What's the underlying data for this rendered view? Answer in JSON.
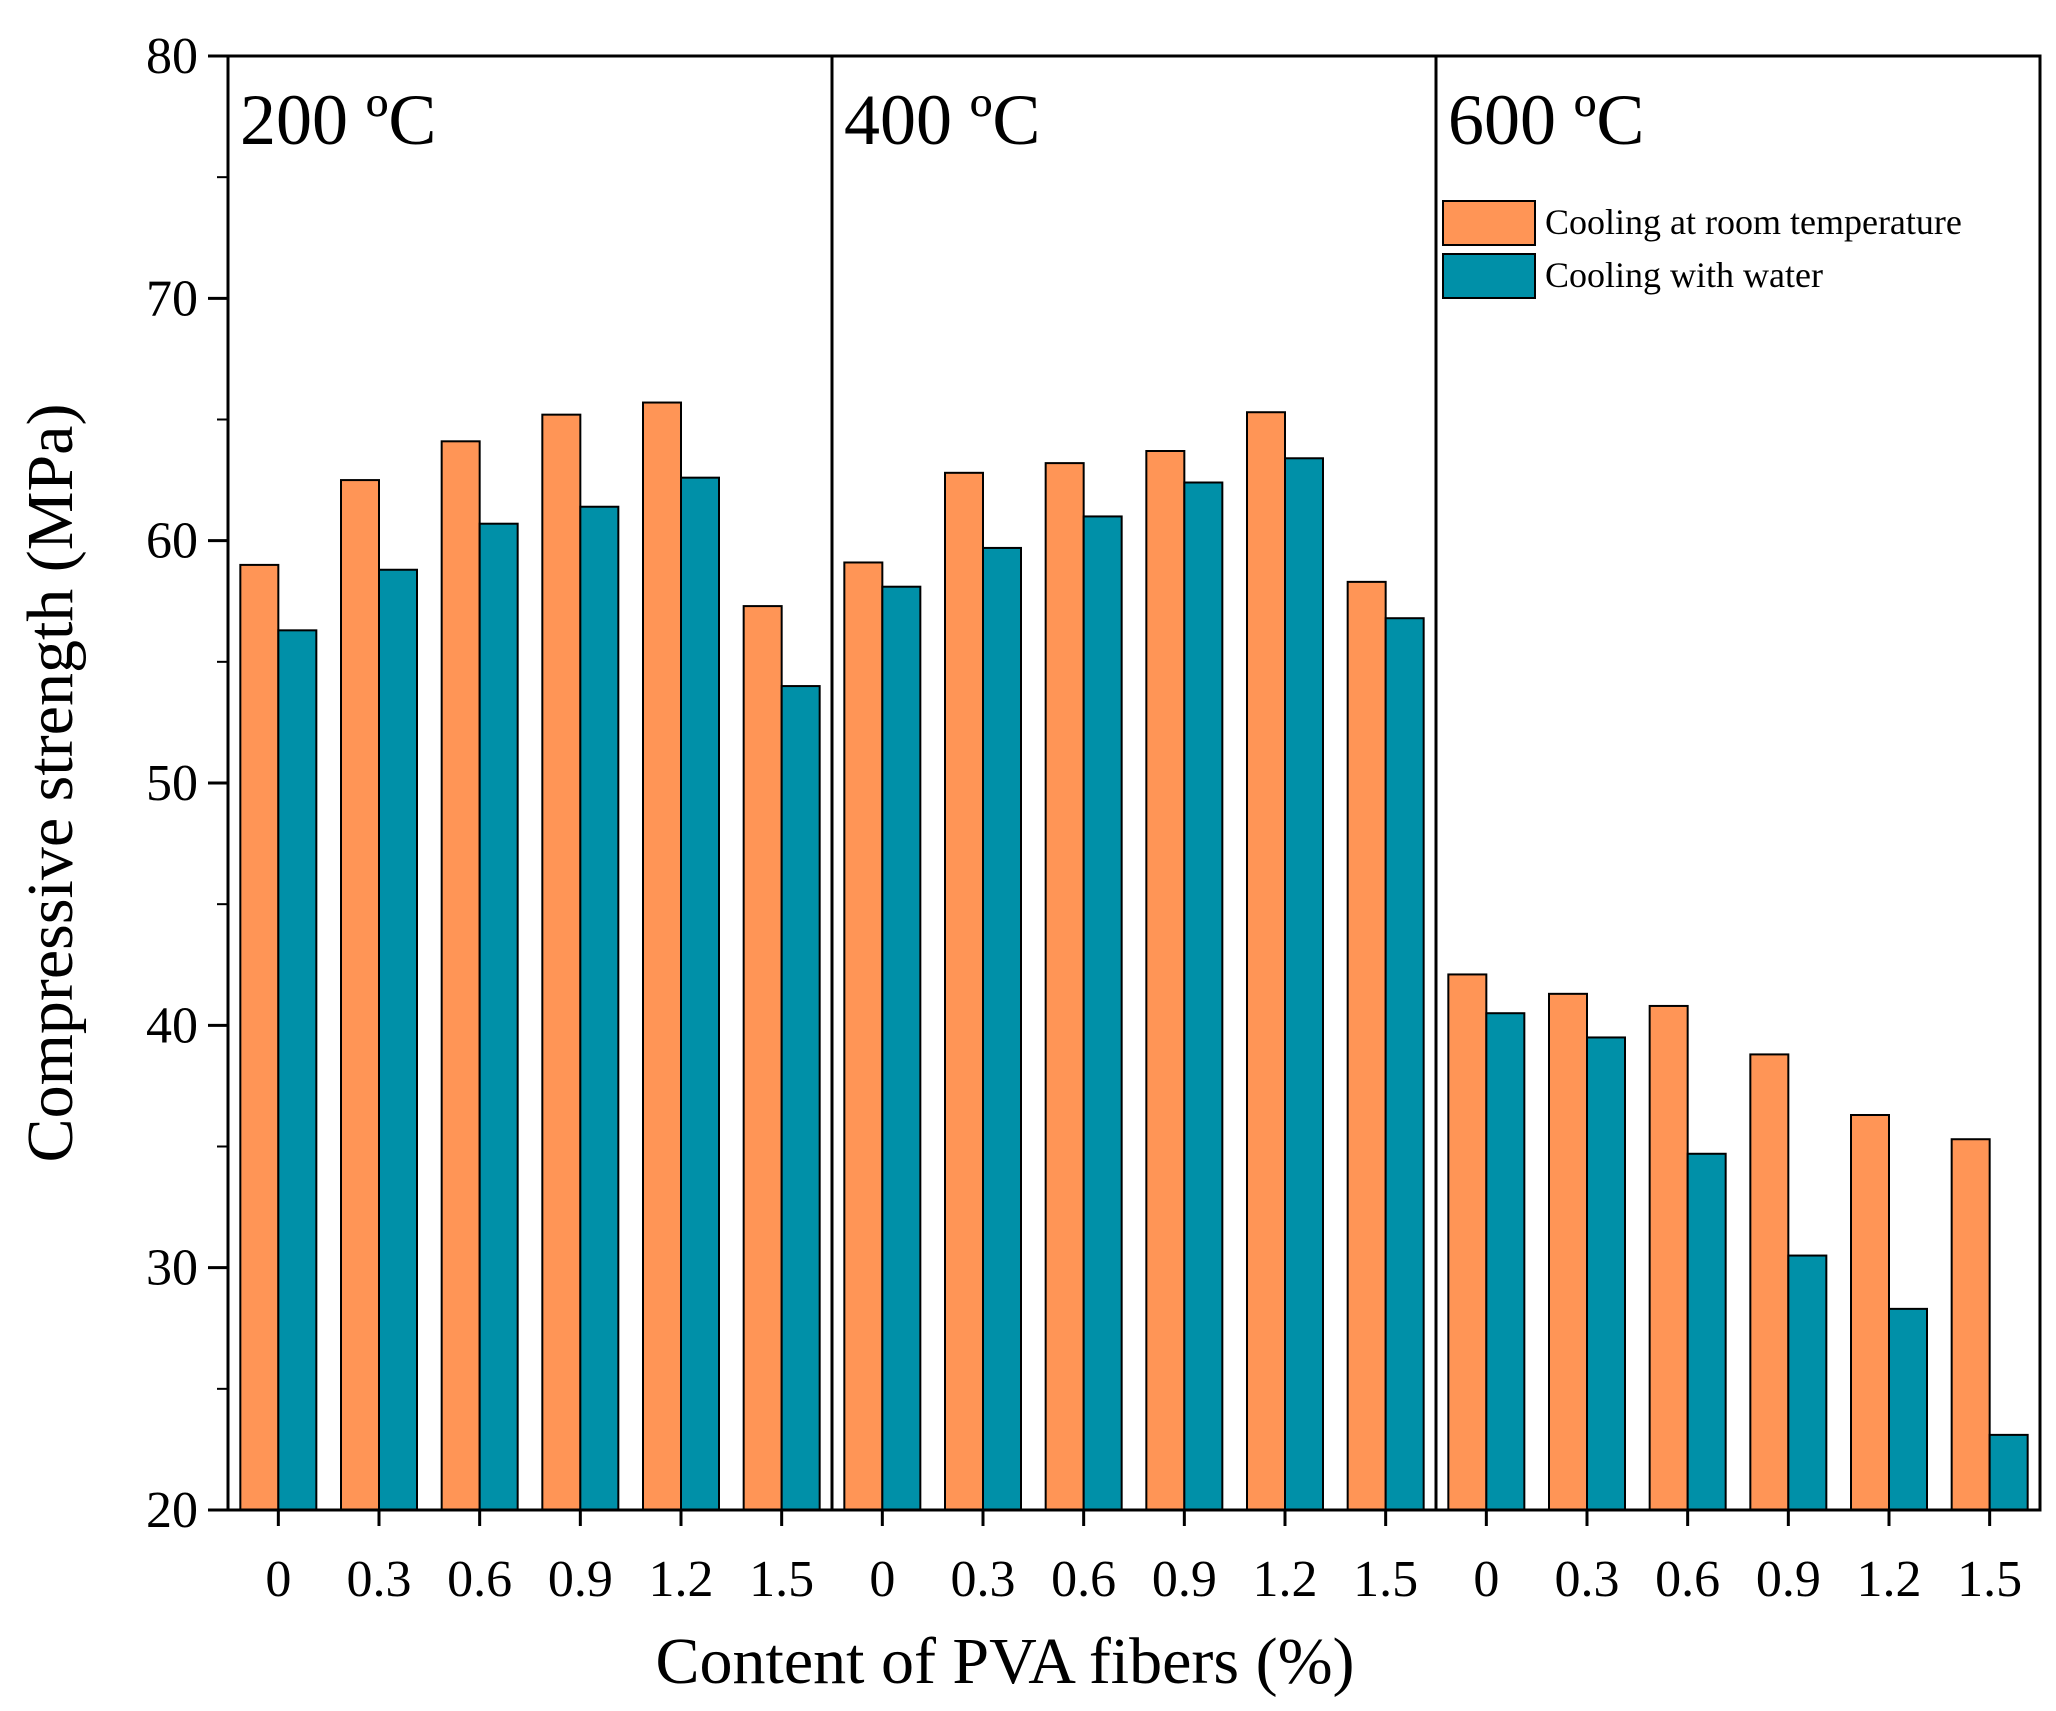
{
  "chart_data": {
    "type": "bar",
    "xlabel": "Content of PVA fibers (%)",
    "ylabel": "Compressive strength (MPa)",
    "ylim": [
      20,
      80
    ],
    "yticks": [
      20,
      30,
      40,
      50,
      60,
      70,
      80
    ],
    "grid": false,
    "legend_position": "top-right",
    "categories": [
      "0",
      "0.3",
      "0.6",
      "0.9",
      "1.2",
      "1.5"
    ],
    "series_colors": {
      "room": "#FF9556",
      "water": "#0090A8"
    },
    "series_names": [
      "Cooling at room temperature",
      "Cooling with water"
    ],
    "panels": [
      {
        "label": "200 ºC",
        "series": [
          {
            "name": "Cooling at room temperature",
            "values": [
              59.0,
              62.5,
              64.1,
              65.2,
              65.7,
              57.3
            ]
          },
          {
            "name": "Cooling with water",
            "values": [
              56.3,
              58.8,
              60.7,
              61.4,
              62.6,
              54.0
            ]
          }
        ]
      },
      {
        "label": "400 ºC",
        "series": [
          {
            "name": "Cooling at room temperature",
            "values": [
              59.1,
              62.8,
              63.2,
              63.7,
              65.3,
              58.3
            ]
          },
          {
            "name": "Cooling with water",
            "values": [
              58.1,
              59.7,
              61.0,
              62.4,
              63.4,
              56.8
            ]
          }
        ]
      },
      {
        "label": "600 ºC",
        "series": [
          {
            "name": "Cooling at room temperature",
            "values": [
              42.1,
              41.3,
              40.8,
              38.8,
              36.3,
              35.3
            ]
          },
          {
            "name": "Cooling with water",
            "values": [
              40.5,
              39.5,
              34.7,
              30.5,
              28.3,
              23.1
            ]
          }
        ]
      }
    ]
  }
}
